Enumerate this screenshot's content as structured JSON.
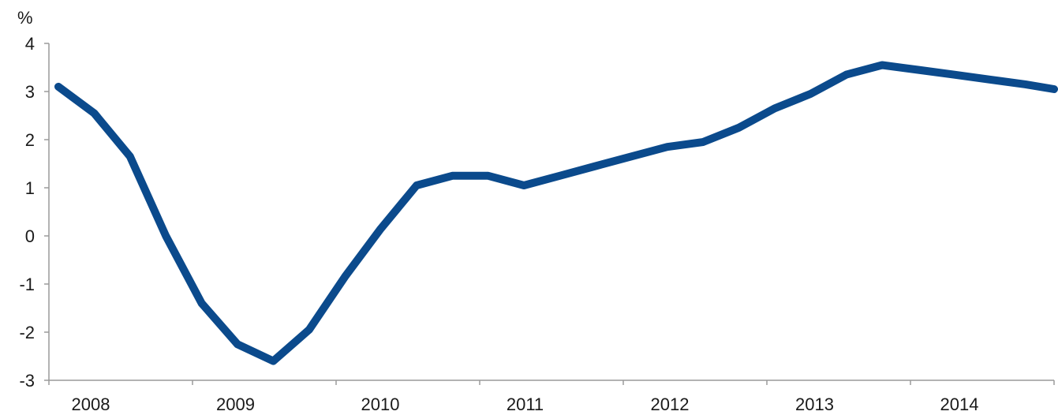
{
  "chart_data": {
    "type": "line",
    "title": "",
    "xlabel": "",
    "ylabel": "%",
    "ylim": [
      -3,
      4
    ],
    "yticks": [
      4,
      3,
      2,
      1,
      0,
      -1,
      -2,
      -3
    ],
    "ytick_labels": [
      "4",
      "3",
      "2",
      "1",
      "0",
      "-1",
      "-2",
      "-3"
    ],
    "xlim": [
      2008.0,
      2014.95
    ],
    "xtick_labels": [
      "2008",
      "2009",
      "2010",
      "2011",
      "2012",
      "2013",
      "2014"
    ],
    "grid": false,
    "legend": "none",
    "series": [
      {
        "color": "#0b4a8c",
        "x": [
          2008.0,
          2008.25,
          2008.5,
          2008.75,
          2009.0,
          2009.25,
          2009.5,
          2009.75,
          2010.0,
          2010.25,
          2010.5,
          2010.75,
          2011.0,
          2011.25,
          2011.5,
          2011.75,
          2012.0,
          2012.25,
          2012.5,
          2012.75,
          2013.0,
          2013.25,
          2013.5,
          2013.75,
          2014.0,
          2014.25,
          2014.5,
          2014.75,
          2014.95
        ],
        "values": [
          3.1,
          2.55,
          1.65,
          0.0,
          -1.4,
          -2.25,
          -2.6,
          -1.95,
          -0.85,
          0.15,
          1.05,
          1.25,
          1.25,
          1.05,
          1.25,
          1.45,
          1.65,
          1.85,
          1.95,
          2.25,
          2.65,
          2.95,
          3.35,
          3.55,
          3.45,
          3.35,
          3.25,
          3.15,
          3.05
        ]
      }
    ]
  }
}
